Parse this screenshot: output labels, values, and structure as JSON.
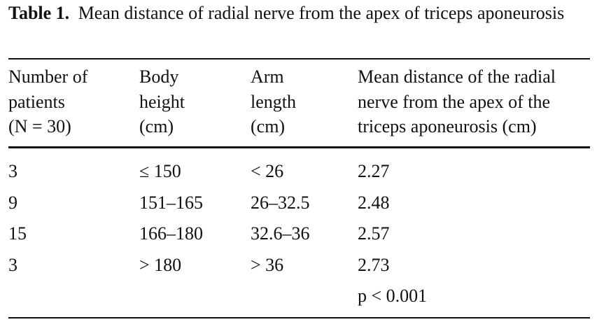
{
  "caption": {
    "label": "Table 1.",
    "text": "Mean distance of radial nerve from the apex of triceps aponeurosis"
  },
  "table": {
    "headers": [
      [
        "Number of",
        "patients",
        "(N = 30)"
      ],
      [
        "Body",
        "height",
        "(cm)"
      ],
      [
        "Arm",
        "length",
        "(cm)"
      ],
      [
        "Mean distance of the radial",
        "nerve from the apex of the",
        "triceps aponeurosis (cm)"
      ]
    ],
    "rows": [
      [
        "3",
        "≤ 150",
        "< 26",
        "2.27"
      ],
      [
        "9",
        "151–165",
        "26–32.5",
        "2.48"
      ],
      [
        "15",
        "166–180",
        "32.6–36",
        "2.57"
      ],
      [
        "3",
        "> 180",
        "> 36",
        "2.73"
      ]
    ],
    "note": "p < 0.001"
  }
}
